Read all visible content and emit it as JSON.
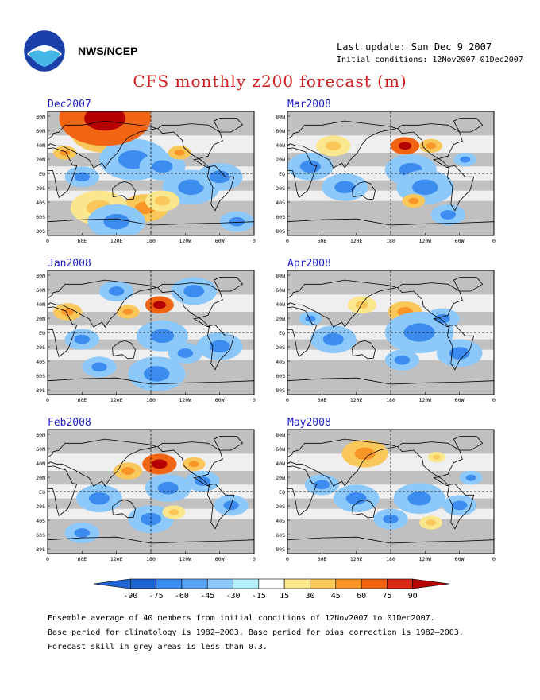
{
  "header": {
    "org": "NWS/NCEP",
    "last_update": "Last update: Sun Dec 9 2007",
    "initial_conditions": "Initial conditions: 12Nov2007–01Dec2007",
    "title": "CFS monthly z200 forecast (m)"
  },
  "axes": {
    "lat_labels": [
      "80N",
      "60N",
      "40N",
      "20N",
      "EQ",
      "20S",
      "40S",
      "60S",
      "80S"
    ],
    "lon_labels": [
      "0",
      "60E",
      "120E",
      "180",
      "120W",
      "60W",
      "0"
    ]
  },
  "colors": {
    "land_grey": "#c0c0c0",
    "sea": "#ffffff",
    "levels": [
      "#1e64d2",
      "#3c8cf0",
      "#5aa5f5",
      "#8cc8fa",
      "#b4f0fa",
      "#ffffff",
      "#fae68c",
      "#fac85a",
      "#fa9628",
      "#f06414",
      "#dc2814",
      "#b40000"
    ]
  },
  "panels": [
    {
      "name": "Dec2007",
      "title": "Dec2007",
      "blobs": [
        [
          100,
          60,
          60,
          "o"
        ],
        [
          170,
          -50,
          40,
          "o"
        ],
        [
          90,
          -50,
          50,
          "y"
        ],
        [
          150,
          20,
          60,
          "b"
        ],
        [
          200,
          10,
          40,
          "b"
        ],
        [
          250,
          -20,
          50,
          "b"
        ],
        [
          230,
          30,
          20,
          "o"
        ],
        [
          30,
          30,
          20,
          "o"
        ],
        [
          100,
          80,
          80,
          "r"
        ],
        [
          60,
          -5,
          30,
          "b"
        ],
        [
          300,
          -5,
          40,
          "b"
        ],
        [
          200,
          -40,
          30,
          "y"
        ],
        [
          330,
          -70,
          30,
          "b"
        ],
        [
          120,
          -70,
          50,
          "b"
        ]
      ]
    },
    {
      "name": "Mar2008",
      "title": "Mar2008",
      "blobs": [
        [
          205,
          40,
          25,
          "r"
        ],
        [
          250,
          40,
          20,
          "o"
        ],
        [
          215,
          5,
          45,
          "b"
        ],
        [
          240,
          -20,
          50,
          "b"
        ],
        [
          80,
          40,
          30,
          "y"
        ],
        [
          220,
          -40,
          20,
          "o"
        ],
        [
          40,
          10,
          40,
          "b"
        ],
        [
          280,
          -60,
          30,
          "b"
        ],
        [
          310,
          20,
          20,
          "b"
        ],
        [
          100,
          -20,
          40,
          "b"
        ]
      ]
    },
    {
      "name": "Jan2008",
      "title": "Jan2008",
      "blobs": [
        [
          195,
          40,
          25,
          "r"
        ],
        [
          35,
          30,
          25,
          "o"
        ],
        [
          140,
          30,
          20,
          "o"
        ],
        [
          200,
          -5,
          45,
          "b"
        ],
        [
          255,
          60,
          40,
          "b"
        ],
        [
          190,
          -60,
          50,
          "b"
        ],
        [
          60,
          -10,
          30,
          "b"
        ],
        [
          300,
          -20,
          40,
          "b"
        ],
        [
          240,
          -30,
          30,
          "b"
        ],
        [
          120,
          60,
          30,
          "b"
        ],
        [
          90,
          -50,
          30,
          "b"
        ]
      ]
    },
    {
      "name": "Apr2008",
      "title": "Apr2008",
      "blobs": [
        [
          205,
          30,
          30,
          "o"
        ],
        [
          130,
          40,
          25,
          "y"
        ],
        [
          230,
          0,
          60,
          "b"
        ],
        [
          80,
          -10,
          40,
          "b"
        ],
        [
          270,
          20,
          30,
          "b"
        ],
        [
          300,
          -30,
          40,
          "b"
        ],
        [
          200,
          -40,
          30,
          "b"
        ],
        [
          40,
          20,
          20,
          "b"
        ]
      ]
    },
    {
      "name": "Feb2008",
      "title": "Feb2008",
      "blobs": [
        [
          195,
          40,
          30,
          "r"
        ],
        [
          140,
          30,
          25,
          "o"
        ],
        [
          255,
          40,
          20,
          "o"
        ],
        [
          210,
          5,
          40,
          "b"
        ],
        [
          270,
          15,
          30,
          "b"
        ],
        [
          180,
          -40,
          40,
          "b"
        ],
        [
          90,
          -10,
          40,
          "b"
        ],
        [
          320,
          -20,
          30,
          "b"
        ],
        [
          60,
          -60,
          30,
          "b"
        ],
        [
          220,
          -30,
          20,
          "y"
        ]
      ]
    },
    {
      "name": "May2008",
      "title": "May2008",
      "blobs": [
        [
          135,
          55,
          40,
          "o"
        ],
        [
          260,
          50,
          15,
          "y"
        ],
        [
          230,
          -10,
          45,
          "b"
        ],
        [
          120,
          -10,
          40,
          "b"
        ],
        [
          60,
          10,
          30,
          "b"
        ],
        [
          300,
          -20,
          30,
          "b"
        ],
        [
          180,
          -40,
          30,
          "b"
        ],
        [
          250,
          -45,
          20,
          "y"
        ],
        [
          320,
          20,
          20,
          "b"
        ]
      ]
    }
  ],
  "legend": {
    "labels": [
      "-90",
      "-75",
      "-60",
      "-45",
      "-30",
      "-15",
      "15",
      "30",
      "45",
      "60",
      "75",
      "90"
    ]
  },
  "notes": [
    "Ensemble average of 40 members from initial conditions of 12Nov2007 to 01Dec2007.",
    "Base period for climatology is 1982–2003. Base period for bias correction is 1982–2003.",
    "Forecast skill in grey areas is less than 0.3."
  ]
}
